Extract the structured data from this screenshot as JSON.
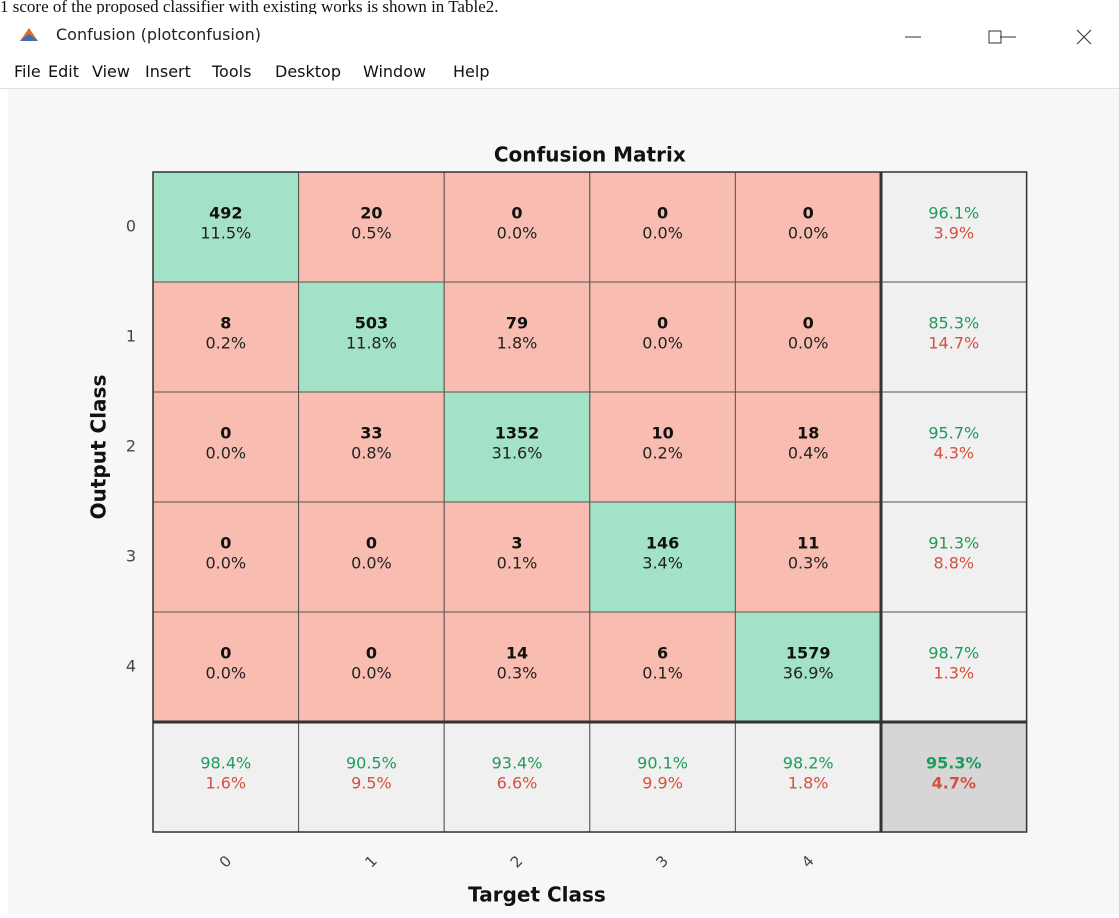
{
  "window": {
    "caption": "1 score of the proposed classifier with existing works is shown in Table2.",
    "title": "Confusion (plotconfusion)",
    "menu": [
      "File",
      "Edit",
      "View",
      "Insert",
      "Tools",
      "Desktop",
      "Window",
      "Help"
    ]
  },
  "matrix": {
    "title": "Confusion Matrix",
    "y_label": "Output Class",
    "x_label": "Target Class",
    "row_labels": [
      "0",
      "1",
      "2",
      "3",
      "4"
    ],
    "col_labels": [
      "0",
      "1",
      "2",
      "3",
      "4"
    ],
    "cells": [
      [
        {
          "count": "492",
          "percent": "11.5%"
        },
        {
          "count": "20",
          "percent": "0.5%"
        },
        {
          "count": "0",
          "percent": "0.0%"
        },
        {
          "count": "0",
          "percent": "0.0%"
        },
        {
          "count": "0",
          "percent": "0.0%"
        }
      ],
      [
        {
          "count": "8",
          "percent": "0.2%"
        },
        {
          "count": "503",
          "percent": "11.8%"
        },
        {
          "count": "79",
          "percent": "1.8%"
        },
        {
          "count": "0",
          "percent": "0.0%"
        },
        {
          "count": "0",
          "percent": "0.0%"
        }
      ],
      [
        {
          "count": "0",
          "percent": "0.0%"
        },
        {
          "count": "33",
          "percent": "0.8%"
        },
        {
          "count": "1352",
          "percent": "31.6%"
        },
        {
          "count": "10",
          "percent": "0.2%"
        },
        {
          "count": "18",
          "percent": "0.4%"
        }
      ],
      [
        {
          "count": "0",
          "percent": "0.0%"
        },
        {
          "count": "0",
          "percent": "0.0%"
        },
        {
          "count": "3",
          "percent": "0.1%"
        },
        {
          "count": "146",
          "percent": "3.4%"
        },
        {
          "count": "11",
          "percent": "0.3%"
        }
      ],
      [
        {
          "count": "0",
          "percent": "0.0%"
        },
        {
          "count": "0",
          "percent": "0.0%"
        },
        {
          "count": "14",
          "percent": "0.3%"
        },
        {
          "count": "6",
          "percent": "0.1%"
        },
        {
          "count": "1579",
          "percent": "36.9%"
        }
      ]
    ],
    "row_summary": [
      {
        "correct": "96.1%",
        "wrong": "3.9%"
      },
      {
        "correct": "85.3%",
        "wrong": "14.7%"
      },
      {
        "correct": "95.7%",
        "wrong": "4.3%"
      },
      {
        "correct": "91.3%",
        "wrong": "8.8%"
      },
      {
        "correct": "98.7%",
        "wrong": "1.3%"
      }
    ],
    "col_summary": [
      {
        "correct": "98.4%",
        "wrong": "1.6%"
      },
      {
        "correct": "90.5%",
        "wrong": "9.5%"
      },
      {
        "correct": "93.4%",
        "wrong": "6.6%"
      },
      {
        "correct": "90.1%",
        "wrong": "9.9%"
      },
      {
        "correct": "98.2%",
        "wrong": "1.8%"
      }
    ],
    "total": {
      "correct": "95.3%",
      "wrong": "4.7%"
    }
  }
}
